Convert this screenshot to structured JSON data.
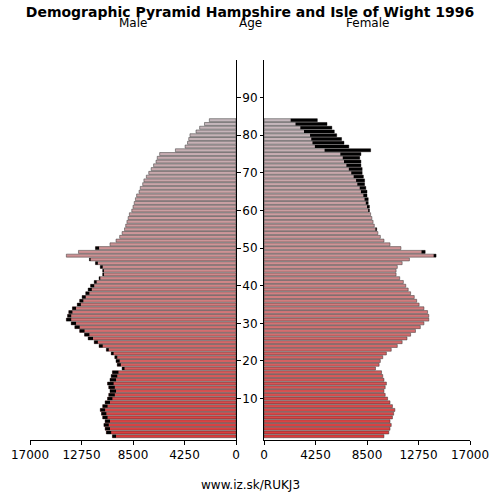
{
  "chart_data": {
    "type": "pyramid",
    "title": "Demographic Pyramid Hampshire and Isle of Wight 1996",
    "ylabel": "Age",
    "annotations": [
      "www.iz.sk/RUKJ3"
    ],
    "orientation": "horizontal",
    "categories": [
      0,
      1,
      2,
      3,
      4,
      5,
      6,
      7,
      8,
      9,
      10,
      11,
      12,
      13,
      14,
      15,
      16,
      17,
      18,
      19,
      20,
      21,
      22,
      23,
      24,
      25,
      26,
      27,
      28,
      29,
      30,
      31,
      32,
      33,
      34,
      35,
      36,
      37,
      38,
      39,
      40,
      41,
      42,
      43,
      44,
      45,
      46,
      47,
      48,
      49,
      50,
      51,
      52,
      53,
      54,
      55,
      56,
      57,
      58,
      59,
      60,
      61,
      62,
      63,
      64,
      65,
      66,
      67,
      68,
      69,
      70,
      71,
      72,
      73,
      74,
      75,
      76,
      77,
      78,
      79,
      80,
      81,
      82,
      83,
      84
    ],
    "series": [
      {
        "name": "Male",
        "values": [
          10200,
          10700,
          10800,
          10900,
          10800,
          11000,
          11100,
          11200,
          11000,
          10800,
          10600,
          10500,
          10400,
          10500,
          10600,
          10400,
          10300,
          10200,
          9400,
          9800,
          9900,
          10000,
          10300,
          10700,
          11300,
          11700,
          12200,
          12500,
          12900,
          13300,
          13600,
          14000,
          13900,
          13800,
          13500,
          13100,
          12900,
          12700,
          12400,
          12200,
          12000,
          11700,
          11300,
          11000,
          11000,
          11200,
          11600,
          12100,
          14000,
          13000,
          11600,
          10400,
          9900,
          9600,
          9400,
          9200,
          9100,
          9000,
          8900,
          8800,
          8600,
          8500,
          8400,
          8300,
          8200,
          8000,
          7900,
          7700,
          7600,
          7400,
          7200,
          7000,
          6800,
          6600,
          6500,
          6300,
          5000,
          4200,
          4000,
          3900,
          3800,
          3300,
          3000,
          2600,
          2200
        ]
      },
      {
        "name": "Female",
        "values": [
          9900,
          10300,
          10400,
          10500,
          10400,
          10600,
          10700,
          10800,
          10600,
          10400,
          10200,
          10000,
          9900,
          10000,
          10100,
          9900,
          9800,
          9700,
          9200,
          9500,
          9600,
          9800,
          10100,
          10500,
          11000,
          11400,
          11800,
          12100,
          12500,
          12900,
          13200,
          13600,
          13600,
          13500,
          13200,
          12800,
          12600,
          12400,
          12100,
          11900,
          11700,
          11500,
          11200,
          10900,
          10900,
          11000,
          11400,
          12000,
          14200,
          13300,
          11300,
          10400,
          9900,
          9600,
          9400,
          9300,
          9100,
          9000,
          8900,
          8800,
          8700,
          8700,
          8600,
          8600,
          8500,
          8500,
          8400,
          8300,
          8300,
          8200,
          8100,
          8100,
          8000,
          8000,
          7900,
          8000,
          8800,
          7000,
          6600,
          6400,
          6000,
          5800,
          5600,
          5200,
          4400
        ]
      }
    ],
    "xlim": [
      0,
      17000
    ],
    "xticks": [
      0,
      4250,
      8500,
      12750,
      17000
    ],
    "ylim": [
      -1,
      100
    ],
    "yticks": [
      10,
      20,
      30,
      40,
      50,
      60,
      70,
      80,
      90
    ],
    "grid": false
  }
}
